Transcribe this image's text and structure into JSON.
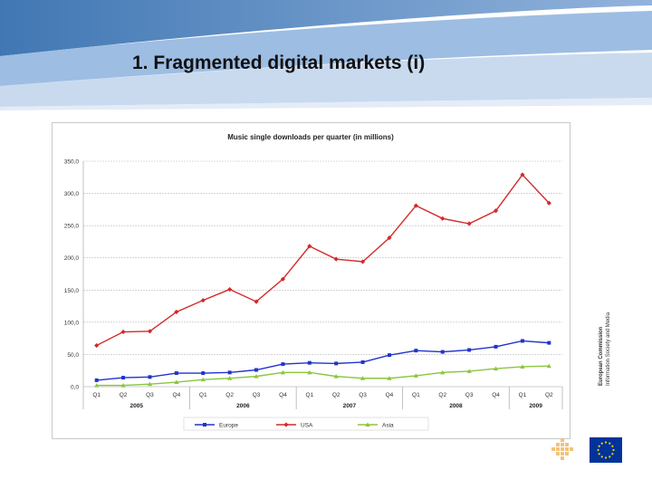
{
  "slide": {
    "title": "1. Fragmented digital markets (i)"
  },
  "branding": {
    "org_name": "European Commission",
    "dg_name": "Information Society and Media",
    "accent_color": "#1f5fa6",
    "header_light_color": "#c6d8ee",
    "flag_color": "#003399",
    "star_color": "#ffcc00"
  },
  "chart_data": {
    "type": "line",
    "title": "Music single downloads per quarter (in millions)",
    "categories": [
      "Q1",
      "Q2",
      "Q3",
      "Q4",
      "Q1",
      "Q2",
      "Q3",
      "Q4",
      "Q1",
      "Q2",
      "Q3",
      "Q4",
      "Q1",
      "Q2",
      "Q3",
      "Q4",
      "Q1",
      "Q2"
    ],
    "year_groups": [
      {
        "label": "2005",
        "count": 4
      },
      {
        "label": "2006",
        "count": 4
      },
      {
        "label": "2007",
        "count": 4
      },
      {
        "label": "2008",
        "count": 4
      },
      {
        "label": "2009",
        "count": 2
      }
    ],
    "yticks": [
      "0,0",
      "50,0",
      "100,0",
      "150,0",
      "200,0",
      "250,0",
      "300,0",
      "350,0"
    ],
    "ylim": [
      0,
      350
    ],
    "grid": true,
    "legend_position": "bottom",
    "series": [
      {
        "name": "Europe",
        "color": "#2233cc",
        "marker": "square",
        "values": [
          10,
          14,
          15,
          21,
          21,
          22,
          26,
          35,
          37,
          36,
          38,
          49,
          56,
          54,
          57,
          62,
          71,
          68
        ]
      },
      {
        "name": "USA",
        "color": "#d42a2a",
        "marker": "diamond",
        "values": [
          64,
          85,
          86,
          116,
          134,
          151,
          132,
          167,
          218,
          198,
          194,
          231,
          281,
          261,
          253,
          273,
          329,
          285
        ]
      },
      {
        "name": "Asia",
        "color": "#8cc63f",
        "marker": "triangle",
        "values": [
          2,
          2,
          4,
          7,
          11,
          13,
          16,
          22,
          22,
          16,
          13,
          13,
          17,
          22,
          24,
          28,
          31,
          32
        ]
      }
    ]
  }
}
